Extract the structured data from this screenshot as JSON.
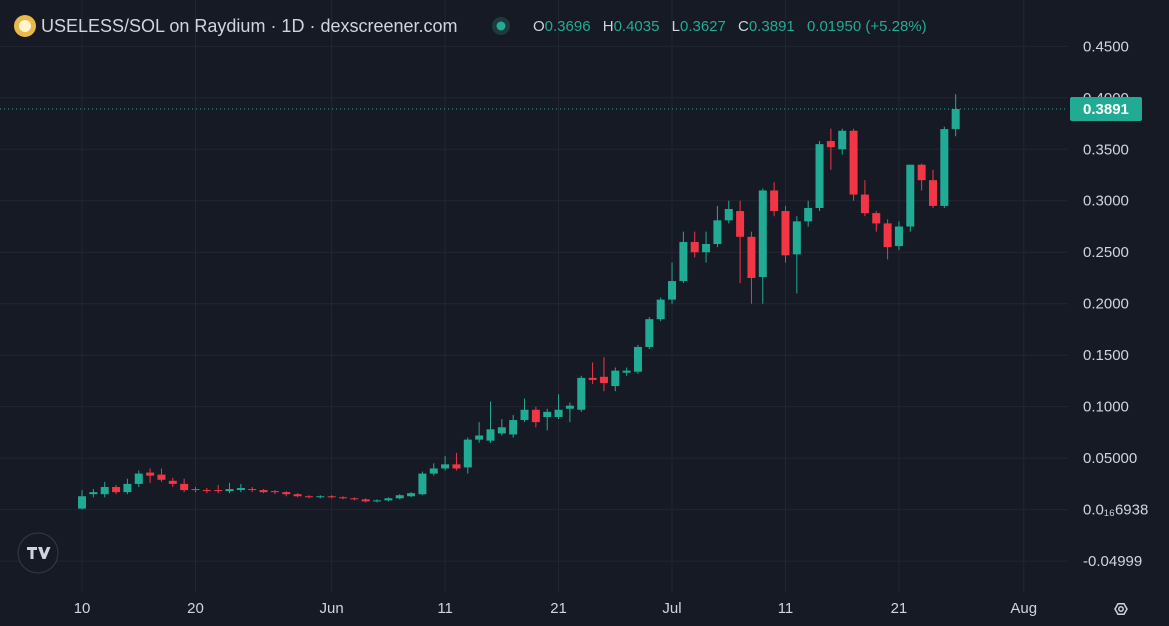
{
  "header": {
    "title": "USELESS/SOL on Raydium · 1D · dexscreener.com",
    "open_label": "O",
    "high_label": "H",
    "low_label": "L",
    "close_label": "C",
    "change": "0.01950 (+5.28%)"
  },
  "chart_data": {
    "type": "candlestick",
    "up_color": "#22ab94",
    "down_color": "#f23645",
    "grid": true,
    "xlim": [
      -7.23,
      86.9
    ],
    "xticks": [
      {
        "value": 0,
        "label": "10"
      },
      {
        "value": 10,
        "label": "20"
      },
      {
        "value": 22,
        "label": "Jun"
      },
      {
        "value": 32,
        "label": "11"
      },
      {
        "value": 42,
        "label": "21"
      },
      {
        "value": 52,
        "label": "Jul"
      },
      {
        "value": 62,
        "label": "11"
      },
      {
        "value": 72,
        "label": "21"
      },
      {
        "value": 83,
        "label": "Aug"
      }
    ],
    "ylim": [
      -0.08,
      0.495
    ],
    "yticks": [
      {
        "value": 0.45,
        "label": "0.4500"
      },
      {
        "value": 0.4,
        "label": "0.4000"
      },
      {
        "value": 0.35,
        "label": "0.3500"
      },
      {
        "value": 0.3,
        "label": "0.3000"
      },
      {
        "value": 0.25,
        "label": "0.2500"
      },
      {
        "value": 0.2,
        "label": "0.2000"
      },
      {
        "value": 0.15,
        "label": "0.1500"
      },
      {
        "value": 0.1,
        "label": "0.1000"
      },
      {
        "value": 0.05,
        "label": "0.05000"
      },
      {
        "value": 6.938e-17,
        "label": "0.0₁₆6938"
      },
      -0.04999
    ],
    "open": [
      0.001,
      0.015,
      0.015,
      0.022,
      0.017,
      0.025,
      0.036,
      0.034,
      0.028,
      0.025,
      0.02,
      0.019,
      0.019,
      0.018,
      0.019,
      0.02,
      0.019,
      0.018,
      0.017,
      0.015,
      0.013,
      0.012,
      0.013,
      0.012,
      0.011,
      0.01,
      0.008,
      0.009,
      0.011,
      0.013,
      0.015,
      0.035,
      0.04,
      0.044,
      0.041,
      0.068,
      0.067,
      0.074,
      0.073,
      0.087,
      0.097,
      0.09,
      0.09,
      0.098,
      0.097,
      0.128,
      0.129,
      0.12,
      0.133,
      0.134,
      0.158,
      0.185,
      0.204,
      0.222,
      0.26,
      0.25,
      0.258,
      0.281,
      0.29,
      0.265,
      0.226,
      0.31,
      0.29,
      0.248,
      0.28,
      0.293,
      0.358,
      0.35,
      0.368,
      0.306,
      0.288,
      0.278,
      0.256,
      0.275,
      0.335,
      0.32,
      0.295,
      0.3696
    ],
    "high": [
      0.019,
      0.02,
      0.027,
      0.024,
      0.03,
      0.038,
      0.04,
      0.04,
      0.031,
      0.03,
      0.022,
      0.021,
      0.024,
      0.026,
      0.025,
      0.022,
      0.02,
      0.019,
      0.018,
      0.016,
      0.014,
      0.014,
      0.014,
      0.013,
      0.012,
      0.011,
      0.01,
      0.012,
      0.015,
      0.017,
      0.037,
      0.045,
      0.052,
      0.055,
      0.07,
      0.085,
      0.105,
      0.088,
      0.092,
      0.108,
      0.1,
      0.098,
      0.112,
      0.104,
      0.13,
      0.143,
      0.148,
      0.138,
      0.138,
      0.16,
      0.187,
      0.206,
      0.24,
      0.27,
      0.27,
      0.27,
      0.295,
      0.3,
      0.3,
      0.27,
      0.312,
      0.318,
      0.295,
      0.285,
      0.3,
      0.358,
      0.37,
      0.37,
      0.37,
      0.32,
      0.29,
      0.282,
      0.28,
      0.335,
      0.336,
      0.33,
      0.372,
      0.4035
    ],
    "low": [
      0,
      0.012,
      0.012,
      0.015,
      0.015,
      0.022,
      0.026,
      0.027,
      0.022,
      0.017,
      0.017,
      0.016,
      0.016,
      0.016,
      0.017,
      0.017,
      0.016,
      0.015,
      0.013,
      0.012,
      0.011,
      0.011,
      0.011,
      0.01,
      0.009,
      0.007,
      0.007,
      0.008,
      0.01,
      0.012,
      0.014,
      0.033,
      0.038,
      0.038,
      0.035,
      0.065,
      0.065,
      0.072,
      0.07,
      0.085,
      0.08,
      0.077,
      0.088,
      0.085,
      0.095,
      0.122,
      0.115,
      0.115,
      0.13,
      0.132,
      0.156,
      0.183,
      0.2,
      0.22,
      0.245,
      0.24,
      0.255,
      0.278,
      0.22,
      0.2,
      0.2,
      0.285,
      0.24,
      0.21,
      0.275,
      0.29,
      0.33,
      0.345,
      0.3,
      0.285,
      0.27,
      0.243,
      0.252,
      0.27,
      0.31,
      0.293,
      0.293,
      0.3627
    ],
    "close": [
      0.013,
      0.017,
      0.022,
      0.017,
      0.025,
      0.035,
      0.033,
      0.029,
      0.025,
      0.019,
      0.019,
      0.018,
      0.018,
      0.02,
      0.021,
      0.019,
      0.017,
      0.017,
      0.015,
      0.013,
      0.012,
      0.013,
      0.012,
      0.011,
      0.01,
      0.008,
      0.009,
      0.011,
      0.014,
      0.016,
      0.035,
      0.04,
      0.044,
      0.04,
      0.068,
      0.072,
      0.078,
      0.08,
      0.087,
      0.097,
      0.085,
      0.095,
      0.097,
      0.101,
      0.128,
      0.126,
      0.123,
      0.135,
      0.135,
      0.158,
      0.185,
      0.204,
      0.222,
      0.26,
      0.25,
      0.258,
      0.281,
      0.292,
      0.265,
      0.225,
      0.31,
      0.29,
      0.247,
      0.28,
      0.293,
      0.355,
      0.352,
      0.368,
      0.306,
      0.288,
      0.278,
      0.255,
      0.275,
      0.335,
      0.32,
      0.295,
      0.3696,
      0.3891
    ]
  }
}
